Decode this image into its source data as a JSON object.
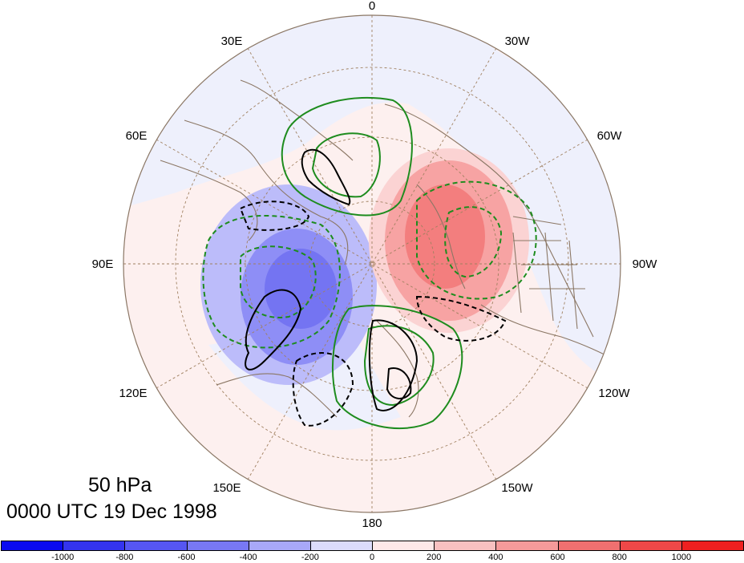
{
  "titles": {
    "level": "50 hPa",
    "time": "0000 UTC 19 Dec 1998"
  },
  "longitude_labels": [
    {
      "text": "0",
      "lon": 0
    },
    {
      "text": "30W",
      "lon": -30
    },
    {
      "text": "60W",
      "lon": -60
    },
    {
      "text": "90W",
      "lon": -90
    },
    {
      "text": "120W",
      "lon": -120
    },
    {
      "text": "150W",
      "lon": -150
    },
    {
      "text": "180",
      "lon": 180
    },
    {
      "text": "150E",
      "lon": 150
    },
    {
      "text": "120E",
      "lon": 120
    },
    {
      "text": "90E",
      "lon": 90
    },
    {
      "text": "60E",
      "lon": 60
    },
    {
      "text": "30E",
      "lon": 30
    }
  ],
  "projection": "north polar stereographic",
  "colorbar": {
    "colors": [
      "#0a0af0",
      "#3434ee",
      "#5656f2",
      "#7878f4",
      "#a8a8f8",
      "#dcdcfb",
      "#fde8e8",
      "#f8c0c0",
      "#f59a9a",
      "#f07070",
      "#ef4848",
      "#ee2020"
    ],
    "labels": [
      "-1000",
      "-800",
      "-600",
      "-400",
      "-200",
      "0",
      "200",
      "400",
      "600",
      "800",
      "1000"
    ]
  },
  "contour_colors": {
    "green": "#1e8c1e",
    "black": "#000000",
    "coast": "#8b7765",
    "grid": "#a08060"
  }
}
